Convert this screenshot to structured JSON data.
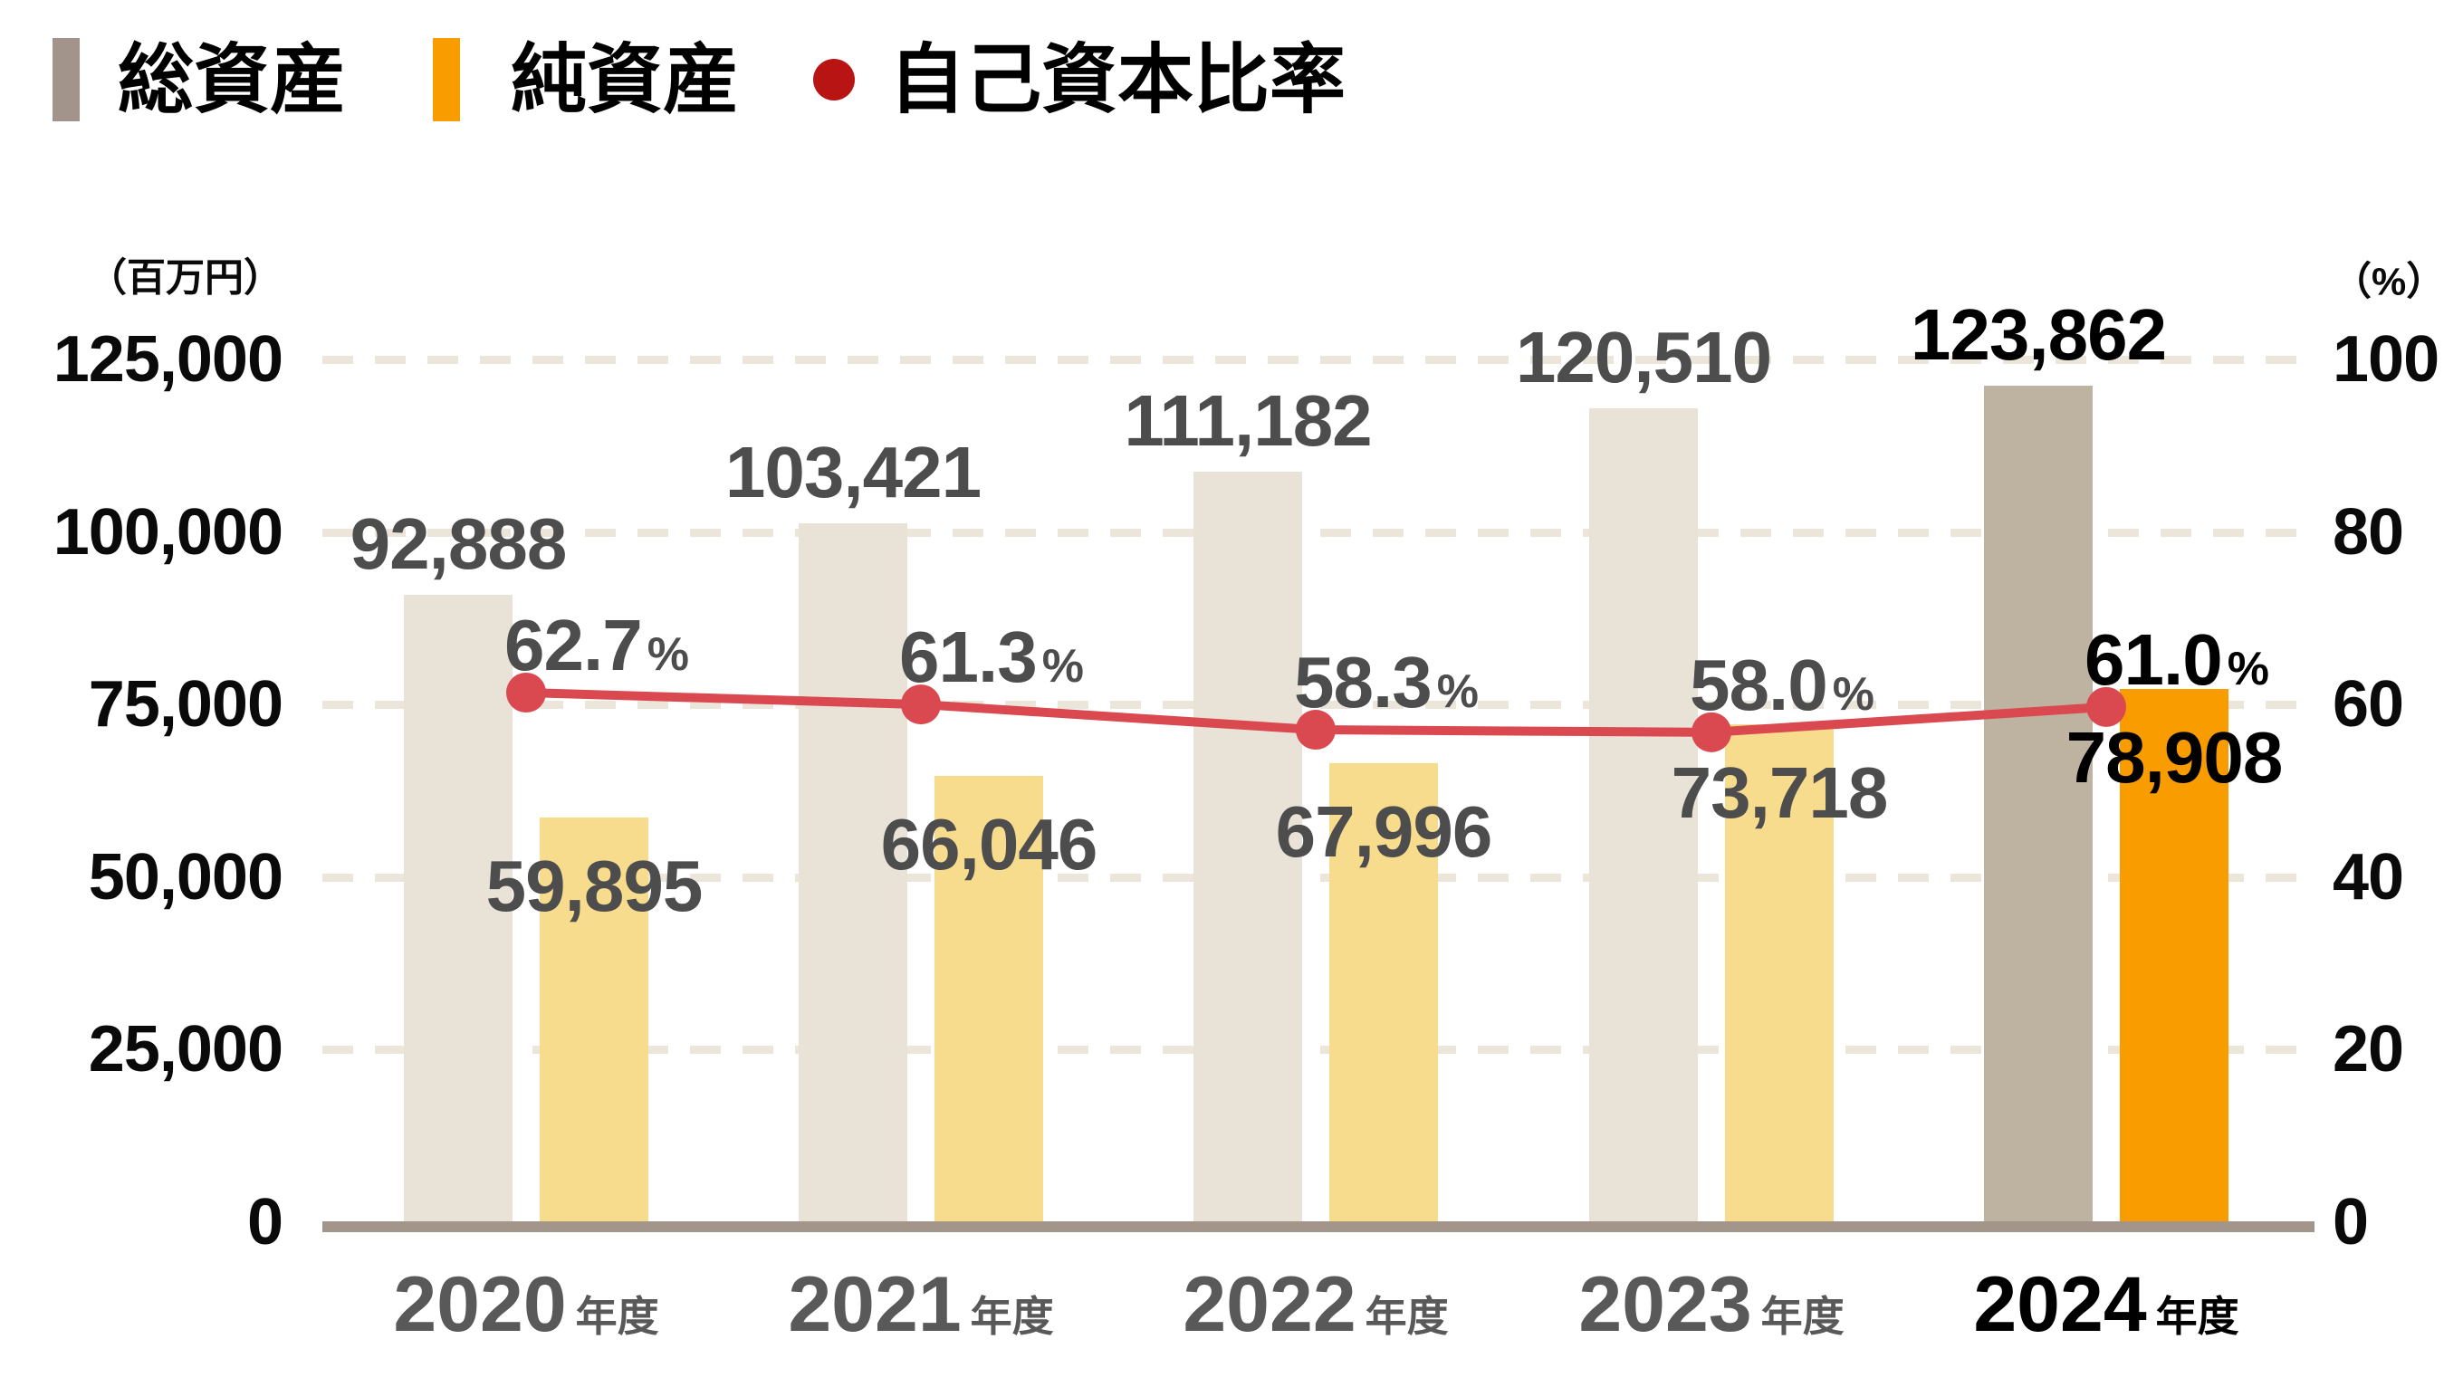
{
  "legend": {
    "items": [
      {
        "label": "総資産",
        "marker": "bar"
      },
      {
        "label": "純資産",
        "marker": "bar"
      },
      {
        "label": "自己資本比率",
        "marker": "dot"
      }
    ]
  },
  "left_axis": {
    "unit": "（百万円）",
    "ticks": [
      125000,
      100000,
      75000,
      50000,
      25000,
      0
    ]
  },
  "right_axis": {
    "unit": "（%）",
    "ticks": [
      100,
      80,
      60,
      40,
      20,
      0
    ]
  },
  "x_axis": {
    "suffix": "年度"
  },
  "chart_data": {
    "type": "bar+line",
    "categories": [
      "2020",
      "2021",
      "2022",
      "2023",
      "2024"
    ],
    "highlight_index": 4,
    "series": [
      {
        "name": "総資産",
        "type": "bar",
        "axis": "left",
        "values": [
          92888,
          103421,
          111182,
          120510,
          123862
        ]
      },
      {
        "name": "純資産",
        "type": "bar",
        "axis": "left",
        "values": [
          59895,
          66046,
          67996,
          73718,
          78908
        ]
      },
      {
        "name": "自己資本比率",
        "type": "line",
        "axis": "right",
        "unit": "%",
        "values": [
          62.7,
          61.3,
          58.3,
          58.0,
          61.0
        ]
      }
    ],
    "left_ylim": [
      0,
      125000
    ],
    "right_ylim": [
      0,
      100
    ],
    "grid": "dashed-horizontal",
    "legend_position": "top-left"
  },
  "colors": {
    "total_assets_bar": "#e9e2d7",
    "total_assets_bar_highlight": "#beb2a0",
    "net_assets_bar": "#f8dc8e",
    "net_assets_bar_highlight": "#f89c00",
    "ratio_line": "#d9494f",
    "ratio_dot": "#d9494f",
    "legend_total_swatch": "#a2948a",
    "legend_net_swatch": "#f89c00",
    "legend_ratio_dot": "#b81414",
    "grid_line": "#ece5d9",
    "axis_line": "#a3958a",
    "value_text": "#4d4d4d",
    "year_text": "#595959",
    "highlight_text": "#000000"
  }
}
